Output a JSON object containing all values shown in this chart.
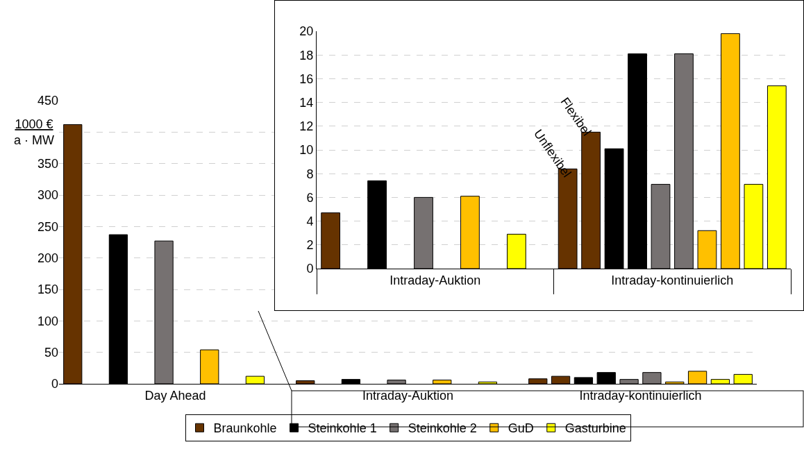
{
  "chart_data": [
    {
      "type": "bar",
      "ylabel": "1000 €\na · MW",
      "categories": [
        "Day Ahead",
        "Intraday-Auktion",
        "Intraday-kontinuierlich"
      ],
      "series": [
        {
          "name": "Braunkohle",
          "color": "#663300",
          "values": [
            412,
            5,
            8
          ]
        },
        {
          "color": "#663300",
          "values": [
            null,
            null,
            12
          ]
        },
        {
          "name": "Steinkohle 1",
          "color": "#000000",
          "values": [
            237,
            7,
            10
          ]
        },
        {
          "color": "#000000",
          "values": [
            null,
            null,
            18
          ]
        },
        {
          "name": "Steinkohle 2",
          "color": "#767171",
          "values": [
            227,
            6,
            7
          ]
        },
        {
          "color": "#767171",
          "values": [
            null,
            null,
            18
          ]
        },
        {
          "name": "GuD",
          "color": "#ffc000",
          "values": [
            54,
            6,
            3
          ]
        },
        {
          "color": "#ffc000",
          "values": [
            null,
            null,
            20
          ]
        },
        {
          "name": "Gasturbine",
          "color": "#ffff00",
          "values": [
            12,
            3,
            7
          ]
        },
        {
          "color": "#ffff00",
          "values": [
            null,
            null,
            15
          ]
        }
      ],
      "ylim": [
        0,
        450
      ],
      "yticks": [
        0,
        50,
        100,
        150,
        200,
        250,
        300,
        350,
        {
          "value": 400,
          "label": null
        },
        450
      ],
      "grid": "y",
      "legend": "bottom"
    },
    {
      "type": "bar",
      "categories": [
        "Intraday-Auktion",
        "Intraday-kontinuierlich"
      ],
      "series": [
        {
          "color": "#663300",
          "values": [
            4.7,
            8.4
          ]
        },
        {
          "color": "#663300",
          "values": [
            null,
            11.5
          ]
        },
        {
          "color": "#000000",
          "values": [
            7.4,
            10.1
          ]
        },
        {
          "color": "#000000",
          "values": [
            null,
            18.1
          ]
        },
        {
          "color": "#767171",
          "values": [
            6.0,
            7.1
          ]
        },
        {
          "color": "#767171",
          "values": [
            null,
            18.1
          ]
        },
        {
          "color": "#ffc000",
          "values": [
            6.1,
            3.2
          ]
        },
        {
          "color": "#ffc000",
          "values": [
            null,
            19.8
          ]
        },
        {
          "color": "#ffff00",
          "values": [
            2.9,
            7.1
          ]
        },
        {
          "color": "#ffff00",
          "values": [
            null,
            15.4
          ]
        }
      ],
      "ylim": [
        0,
        20
      ],
      "yticks": [
        0,
        2,
        4,
        6,
        8,
        10,
        12,
        14,
        16,
        18,
        20
      ],
      "grid": "y",
      "legend": false,
      "annotations": [
        "Unflexibel",
        "Flexibel"
      ]
    }
  ]
}
